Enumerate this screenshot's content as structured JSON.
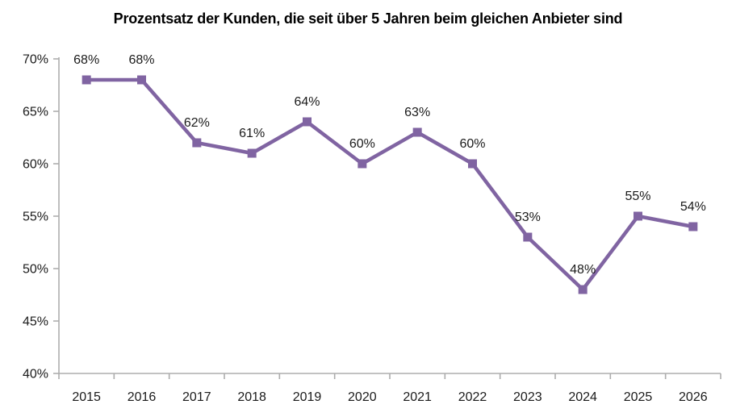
{
  "chart_data": {
    "type": "line",
    "title": "Prozentsatz der Kunden, die seit über 5 Jahren beim gleichen Anbieter sind",
    "categories": [
      "2015",
      "2016",
      "2017",
      "2018",
      "2019",
      "2020",
      "2021",
      "2022",
      "2023",
      "2024",
      "2025",
      "2026"
    ],
    "series": [
      {
        "name": "Prozentsatz der Kunden",
        "values": [
          68,
          68,
          62,
          61,
          64,
          60,
          63,
          60,
          53,
          48,
          55,
          54
        ]
      }
    ],
    "data_labels": [
      "68%",
      "68%",
      "62%",
      "61%",
      "64%",
      "60%",
      "63%",
      "60%",
      "53%",
      "48%",
      "55%",
      "54%"
    ],
    "y_tick_labels": [
      "70%",
      "65%",
      "60%",
      "55%",
      "50%",
      "45%",
      "40%"
    ],
    "ylim": [
      40,
      70
    ],
    "y_tick_step": 5,
    "xlabel": "",
    "ylabel": "",
    "grid": false,
    "legend": "none",
    "marker_shape": "square",
    "colors": {
      "line": "#8064A2",
      "marker": "#8064A2",
      "axis": "#ADADAD",
      "text": "#1a1a1a",
      "title": "#000000",
      "background": "#FFFFFF"
    }
  }
}
